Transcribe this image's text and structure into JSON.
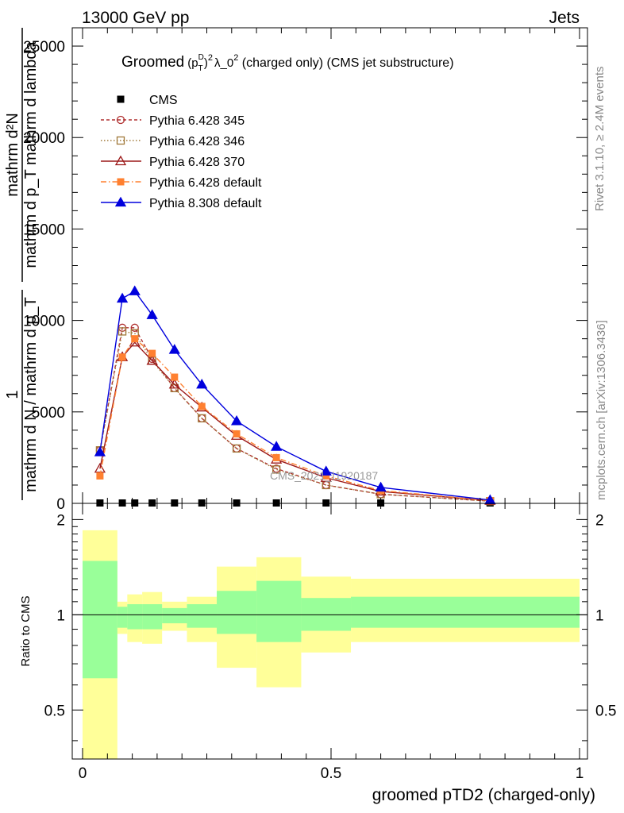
{
  "header": {
    "left": "13000 GeV pp",
    "right": "Jets"
  },
  "side_labels": {
    "top": "Rivet 3.1.10, ≥ 2.4M events",
    "bottom": "mcplots.cern.ch [arXiv:1306.3436]"
  },
  "watermark": "CMS_2021_I1920187",
  "colors": {
    "band_outer": "#ffff99",
    "band_inner": "#99ff99"
  },
  "chart_data": [
    {
      "type": "line",
      "title": "Groomed (p_T^D)^2 λ_0^2 (charged only) (CMS jet substructure)",
      "title_parts": {
        "pre": "Groomed",
        "p": "(p",
        "sub": "T",
        "sup": "D",
        "exp": ")",
        "two": "2",
        "lam": "λ_0",
        "tail": " (charged only) (CMS jet substructure)"
      },
      "ylabel": {
        "numerator": "mathrm d²N",
        "denominator": "mathrm d p_T mathrm d lambda",
        "prefactor_num": "1",
        "prefactor_den": "mathrm d N / mathrm d p_T"
      },
      "xlim": [
        0,
        1
      ],
      "ylim": [
        0,
        26000
      ],
      "yticks": [
        0,
        5000,
        10000,
        15000,
        20000,
        25000
      ],
      "ytick_labels": [
        "0",
        "5000",
        "10000",
        "15000",
        "20000",
        "25000"
      ],
      "x": [
        0.035,
        0.08,
        0.105,
        0.14,
        0.185,
        0.24,
        0.31,
        0.39,
        0.49,
        0.6,
        0.82
      ],
      "series": [
        {
          "name": "CMS",
          "marker": "square-filled",
          "color": "#000000",
          "dash": "",
          "values": [
            0,
            0,
            0,
            0,
            0,
            0,
            0,
            0,
            0,
            0,
            0
          ]
        },
        {
          "name": "Pythia 6.428 345",
          "marker": "circle-open",
          "color": "#b03030",
          "dash": "4,3",
          "values": [
            2900,
            9600,
            9600,
            7900,
            6300,
            4650,
            3000,
            1900,
            1000,
            500,
            120
          ]
        },
        {
          "name": "Pythia 6.428 346",
          "marker": "square-open",
          "color": "#a07838",
          "dash": "1.5,2.5",
          "values": [
            2900,
            9400,
            9300,
            7800,
            6300,
            4650,
            3000,
            1850,
            1000,
            500,
            120
          ]
        },
        {
          "name": "Pythia 6.428 370",
          "marker": "triangle-open",
          "color": "#9c1818",
          "dash": "",
          "values": [
            1900,
            8000,
            8800,
            7800,
            6500,
            5250,
            3700,
            2400,
            1400,
            650,
            150
          ]
        },
        {
          "name": "Pythia 6.428 default",
          "marker": "square-filled",
          "color": "#ff8030",
          "dash": "7,3,1.5,3",
          "values": [
            1500,
            8000,
            9000,
            8200,
            6900,
            5300,
            3800,
            2500,
            1500,
            700,
            150
          ]
        },
        {
          "name": "Pythia 8.308 default",
          "marker": "triangle-filled",
          "color": "#0000dd",
          "dash": "",
          "values": [
            2800,
            11200,
            11600,
            10300,
            8400,
            6500,
            4500,
            3100,
            1750,
            870,
            180
          ]
        }
      ]
    },
    {
      "type": "area",
      "ylabel": "Ratio to CMS",
      "xlabel": "groomed pTD2 (charged-only)",
      "xlim": [
        0,
        1
      ],
      "ylim": [
        0.35,
        2.25
      ],
      "xticks": [
        0,
        0.5,
        1
      ],
      "xtick_labels": [
        "0",
        "0.5",
        "1"
      ],
      "yticks": [
        0.5,
        1,
        2
      ],
      "ytick_labels": [
        "0.5",
        "1",
        "2"
      ],
      "reference": 1,
      "bins": [
        {
          "x0": 0.0,
          "x1": 0.07,
          "outer": [
            0.35,
            1.85
          ],
          "inner": [
            0.63,
            1.48
          ]
        },
        {
          "x0": 0.07,
          "x1": 0.09,
          "outer": [
            0.87,
            1.1
          ],
          "inner": [
            0.91,
            1.06
          ]
        },
        {
          "x0": 0.09,
          "x1": 0.12,
          "outer": [
            0.82,
            1.16
          ],
          "inner": [
            0.9,
            1.08
          ]
        },
        {
          "x0": 0.12,
          "x1": 0.16,
          "outer": [
            0.81,
            1.18
          ],
          "inner": [
            0.9,
            1.08
          ]
        },
        {
          "x0": 0.16,
          "x1": 0.21,
          "outer": [
            0.89,
            1.1
          ],
          "inner": [
            0.94,
            1.05
          ]
        },
        {
          "x0": 0.21,
          "x1": 0.27,
          "outer": [
            0.82,
            1.14
          ],
          "inner": [
            0.91,
            1.08
          ]
        },
        {
          "x0": 0.27,
          "x1": 0.35,
          "outer": [
            0.68,
            1.42
          ],
          "inner": [
            0.87,
            1.19
          ]
        },
        {
          "x0": 0.35,
          "x1": 0.44,
          "outer": [
            0.59,
            1.52
          ],
          "inner": [
            0.82,
            1.28
          ]
        },
        {
          "x0": 0.44,
          "x1": 0.54,
          "outer": [
            0.76,
            1.32
          ],
          "inner": [
            0.89,
            1.13
          ]
        },
        {
          "x0": 0.54,
          "x1": 1.0,
          "outer": [
            0.82,
            1.3
          ],
          "inner": [
            0.91,
            1.14
          ]
        }
      ]
    }
  ]
}
